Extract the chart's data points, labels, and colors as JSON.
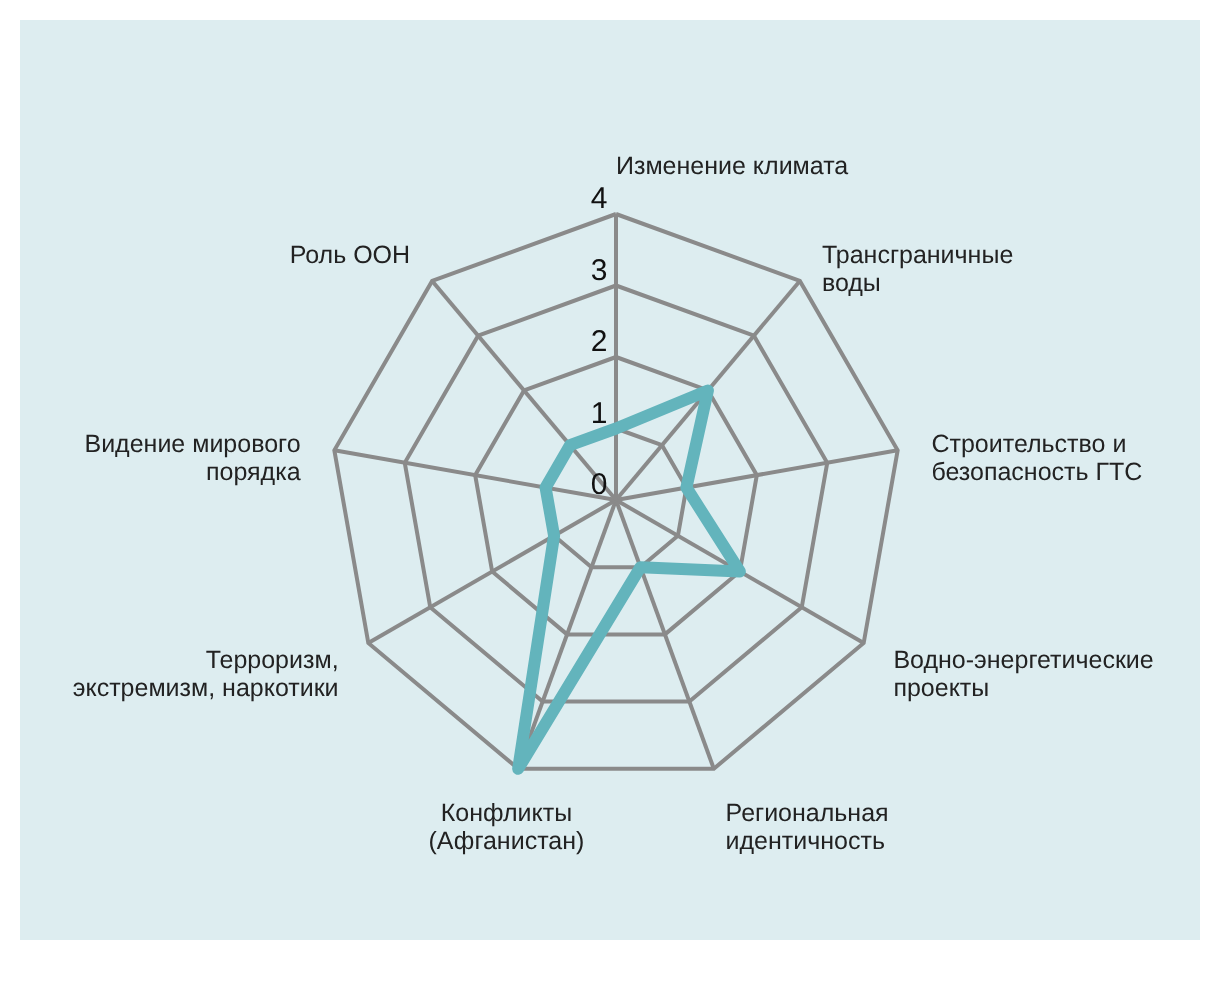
{
  "chart_data": {
    "type": "radar",
    "categories": [
      "Изменение климата",
      "Трансграничные воды",
      "Строительство и безопасность ГТС",
      "Водно-энергетические проекты",
      "Региональная идентичность",
      "Конфликты (Афганистан)",
      "Терроризм, экстремизм, наркотики",
      "Видение мирового порядка",
      "Роль ООН"
    ],
    "series": [
      {
        "color": "#63b4bc",
        "values": [
          1,
          2,
          1,
          2,
          1,
          4,
          1,
          1,
          1
        ]
      }
    ],
    "ylim": [
      0,
      4
    ],
    "yticks": [
      0,
      1,
      2,
      3,
      4
    ],
    "grid": true
  }
}
